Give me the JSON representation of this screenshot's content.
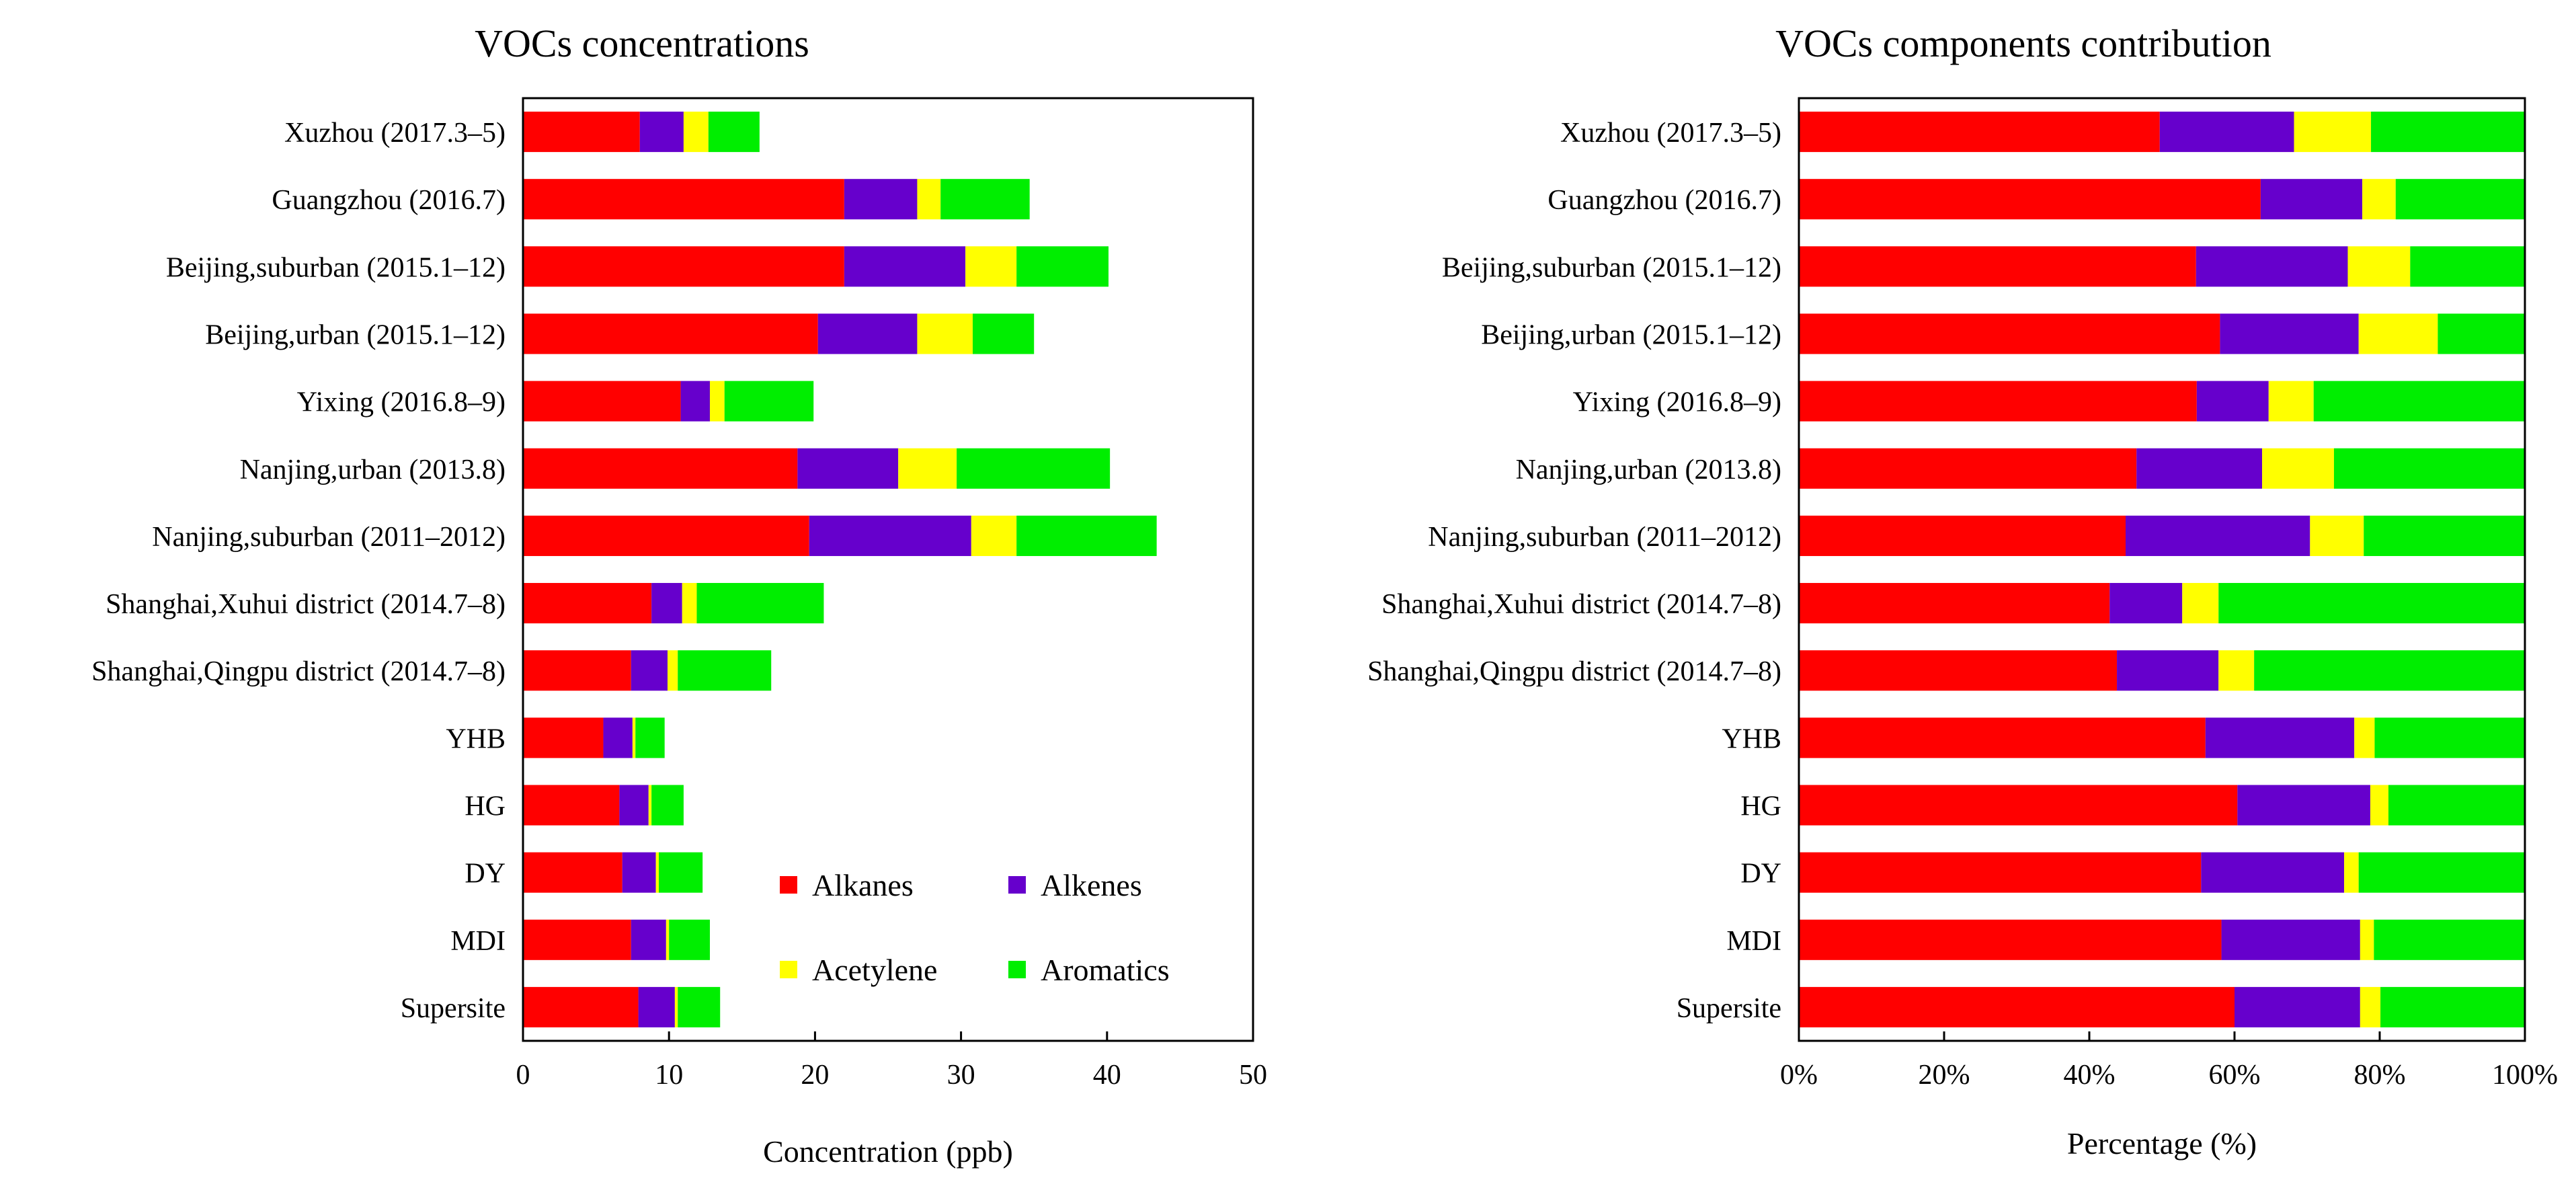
{
  "colors": {
    "Alkanes": "#ff0000",
    "Alkenes": "#6600cc",
    "Acetylene": "#ffff00",
    "Aromatics": "#00ee00"
  },
  "chart_data": [
    {
      "type": "bar",
      "orientation": "horizontal",
      "stacked": true,
      "title": "VOCs concentrations",
      "xlabel": "Concentration (ppb)",
      "ylabel": "",
      "xlim": [
        0,
        50
      ],
      "xticks": [
        0,
        10,
        20,
        30,
        40,
        50
      ],
      "xtick_labels": [
        "0",
        "10",
        "20",
        "30",
        "40",
        "50"
      ],
      "legend": {
        "placement": "inside-bottom-right",
        "columns": 2
      },
      "categories": [
        "Xuzhou (2017.3–5)",
        "Guangzhou (2016.7)",
        "Beijing,suburban (2015.1–12)",
        "Beijing,urban (2015.1–12)",
        "Yixing (2016.8–9)",
        "Nanjing,urban (2013.8)",
        "Nanjing,suburban (2011–2012)",
        "Shanghai,Xuhui district (2014.7–8)",
        "Shanghai,Qingpu district (2014.7–8)",
        "YHB",
        "HG",
        "DY",
        "MDI",
        "Supersite"
      ],
      "series": [
        {
          "name": "Alkanes",
          "values": [
            8.0,
            22.0,
            22.0,
            20.2,
            10.8,
            18.8,
            19.6,
            8.8,
            7.4,
            5.5,
            6.6,
            6.8,
            7.4,
            7.9
          ]
        },
        {
          "name": "Alkenes",
          "values": [
            3.0,
            5.0,
            8.3,
            6.8,
            2.0,
            6.9,
            11.1,
            2.1,
            2.5,
            2.0,
            2.0,
            2.3,
            2.4,
            2.5
          ]
        },
        {
          "name": "Acetylene",
          "values": [
            1.7,
            1.6,
            3.5,
            3.8,
            1.0,
            4.0,
            3.1,
            1.0,
            0.7,
            0.2,
            0.2,
            0.2,
            0.2,
            0.2
          ]
        },
        {
          "name": "Aromatics",
          "values": [
            3.5,
            6.1,
            6.3,
            4.2,
            6.1,
            10.5,
            9.6,
            8.7,
            6.4,
            2.0,
            2.2,
            3.0,
            2.8,
            2.9
          ]
        }
      ]
    },
    {
      "type": "bar",
      "orientation": "horizontal",
      "stacked": true,
      "percent": true,
      "title": "VOCs components contribution",
      "xlabel": "Percentage (%)",
      "ylabel": "",
      "xlim": [
        0,
        100
      ],
      "xticks": [
        0,
        20,
        40,
        60,
        80,
        100
      ],
      "xtick_labels": [
        "0%",
        "20%",
        "40%",
        "60%",
        "80%",
        "100%"
      ],
      "categories": [
        "Xuzhou (2017.3–5)",
        "Guangzhou (2016.7)",
        "Beijing,suburban (2015.1–12)",
        "Beijing,urban (2015.1–12)",
        "Yixing (2016.8–9)",
        "Nanjing,urban (2013.8)",
        "Nanjing,suburban (2011–2012)",
        "Shanghai,Xuhui district (2014.7–8)",
        "Shanghai,Qingpu district (2014.7–8)",
        "YHB",
        "HG",
        "DY",
        "MDI",
        "Supersite"
      ],
      "series": [
        {
          "name": "Alkanes",
          "values": [
            49.7,
            63.6,
            54.7,
            58.0,
            54.8,
            46.5,
            45.0,
            42.8,
            43.8,
            56.0,
            60.4,
            55.4,
            58.2,
            60.0
          ]
        },
        {
          "name": "Alkenes",
          "values": [
            18.5,
            14.0,
            20.9,
            19.1,
            9.9,
            17.3,
            25.4,
            10.0,
            14.0,
            20.5,
            18.3,
            19.7,
            19.1,
            17.3
          ]
        },
        {
          "name": "Acetylene",
          "values": [
            10.6,
            4.6,
            8.6,
            10.9,
            6.2,
            9.9,
            7.4,
            5.0,
            4.9,
            2.8,
            2.5,
            2.0,
            1.9,
            2.8
          ]
        },
        {
          "name": "Aromatics",
          "values": [
            21.2,
            17.8,
            15.8,
            12.0,
            29.1,
            26.3,
            22.2,
            42.2,
            37.3,
            20.7,
            18.8,
            22.9,
            20.8,
            19.9
          ]
        }
      ]
    }
  ]
}
